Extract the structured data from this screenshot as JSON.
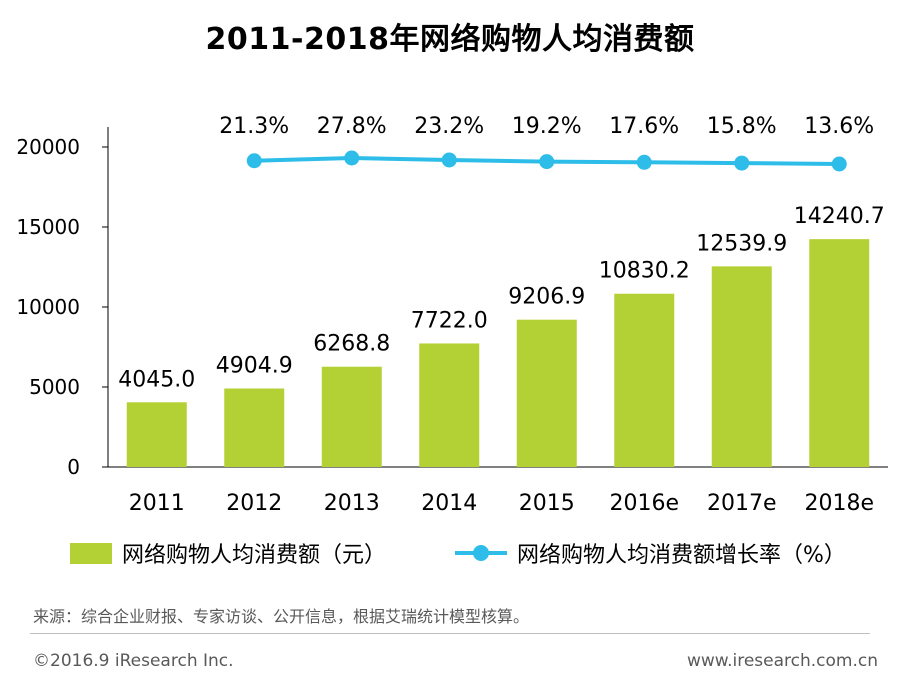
{
  "colors": {
    "bar": "#b3d135",
    "line": "#2dbde8",
    "axis": "#000000",
    "footer_text": "#595959"
  },
  "chart_data": {
    "type": "bar",
    "title": "2011-2018年网络购物人均消费额",
    "categories": [
      "2011",
      "2012",
      "2013",
      "2014",
      "2015",
      "2016e",
      "2017e",
      "2018e"
    ],
    "ylim": [
      0,
      20000
    ],
    "yticks": [
      "0",
      "5000",
      "10000",
      "15000",
      "20000"
    ],
    "grid": false,
    "legend_position": "bottom",
    "series": [
      {
        "name": "网络购物人均消费额（元）",
        "type": "bar",
        "values": [
          4045.0,
          4904.9,
          6268.8,
          7722.0,
          9206.9,
          10830.2,
          12539.9,
          14240.7
        ],
        "labels": [
          "4045.0",
          "4904.9",
          "6268.8",
          "7722.0",
          "9206.9",
          "10830.2",
          "12539.9",
          "14240.7"
        ]
      },
      {
        "name": "网络购物人均消费额增长率（%）",
        "type": "line",
        "values": [
          null,
          21.3,
          27.8,
          23.2,
          19.2,
          17.6,
          15.8,
          13.6
        ],
        "labels": [
          "",
          "21.3%",
          "27.8%",
          "23.2%",
          "19.2%",
          "17.6%",
          "15.8%",
          "13.6%"
        ]
      }
    ]
  },
  "footer": {
    "source": "来源：综合企业财报、专家访谈、公开信息，根据艾瑞统计模型核算。",
    "copyright": "©2016.9 iResearch Inc.",
    "website": "www.iresearch.com.cn"
  }
}
